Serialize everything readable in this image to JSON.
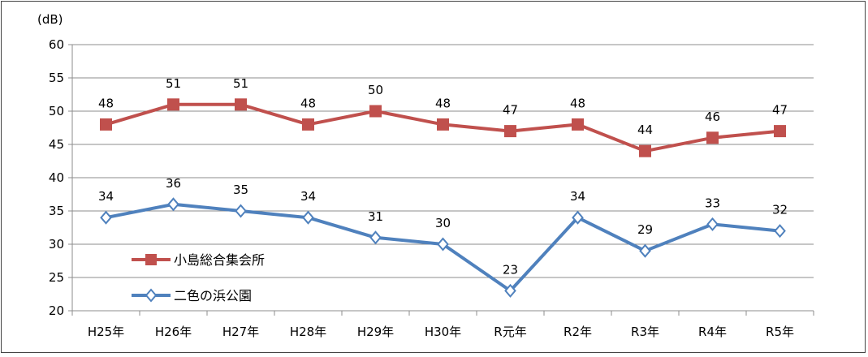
{
  "chart_data": {
    "type": "line",
    "unit_label": "(dB)",
    "categories": [
      "H25年",
      "H26年",
      "H27年",
      "H28年",
      "H29年",
      "H30年",
      "R元年",
      "R2年",
      "R3年",
      "R4年",
      "R5年"
    ],
    "ylim": [
      20,
      60
    ],
    "yticks": [
      20,
      25,
      30,
      35,
      40,
      45,
      50,
      55,
      60
    ],
    "grid": true,
    "legend_position": "left-bottom",
    "series": [
      {
        "name": "小島総合集会所",
        "color": "#C0504D",
        "marker": "square",
        "values": [
          48,
          51,
          51,
          48,
          50,
          48,
          47,
          48,
          44,
          46,
          47
        ]
      },
      {
        "name": "二色の浜公園",
        "color": "#4F81BD",
        "marker": "diamond-open",
        "values": [
          34,
          36,
          35,
          34,
          31,
          30,
          23,
          34,
          29,
          33,
          32
        ]
      }
    ]
  }
}
